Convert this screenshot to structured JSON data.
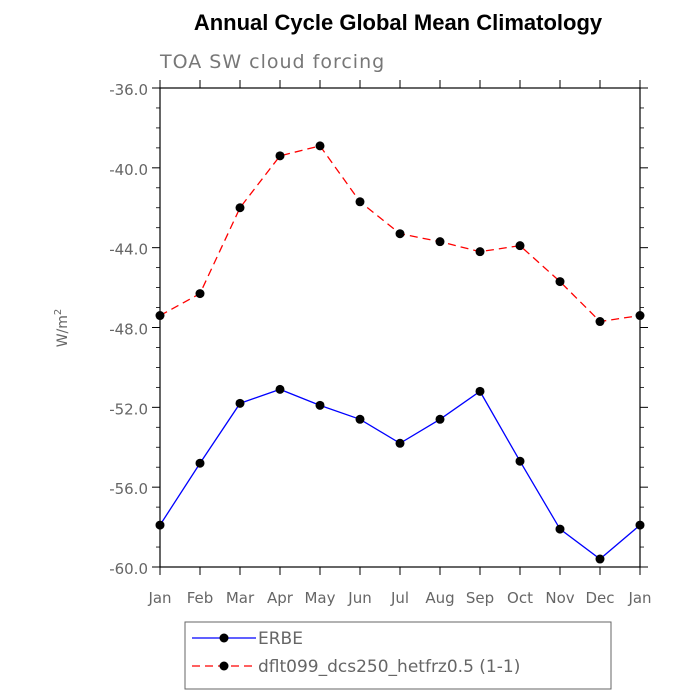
{
  "chart_data": {
    "type": "line",
    "title": "Annual Cycle Global Mean Climatology",
    "subtitle": "TOA SW cloud forcing",
    "xlabel": "",
    "ylabel": "W/m",
    "ylabel_superscript": "2",
    "categories": [
      "Jan",
      "Feb",
      "Mar",
      "Apr",
      "May",
      "Jun",
      "Jul",
      "Aug",
      "Sep",
      "Oct",
      "Nov",
      "Dec",
      "Jan"
    ],
    "ylim": [
      -60,
      -36
    ],
    "yticks": [
      -36,
      -40,
      -44,
      -48,
      -52,
      -56,
      -60
    ],
    "ytick_labels": [
      "-36.0",
      "-40.0",
      "-44.0",
      "-48.0",
      "-52.0",
      "-56.0",
      "-60.0"
    ],
    "grid": false,
    "legend_position": "bottom",
    "series": [
      {
        "name": "ERBE",
        "color": "#0000ff",
        "line_style": "solid",
        "values": [
          -57.9,
          -54.8,
          -51.8,
          -51.1,
          -51.9,
          -52.6,
          -53.8,
          -52.6,
          -51.2,
          -54.7,
          -58.1,
          -59.6,
          -57.9
        ]
      },
      {
        "name": "dflt099_dcs250_hetfrz0.5 (1-1)",
        "color": "#ff0000",
        "line_style": "dashed",
        "values": [
          -47.4,
          -46.3,
          -42.0,
          -39.4,
          -38.9,
          -41.7,
          -43.3,
          -43.7,
          -44.2,
          -43.9,
          -45.7,
          -47.7,
          -47.4
        ]
      }
    ]
  }
}
